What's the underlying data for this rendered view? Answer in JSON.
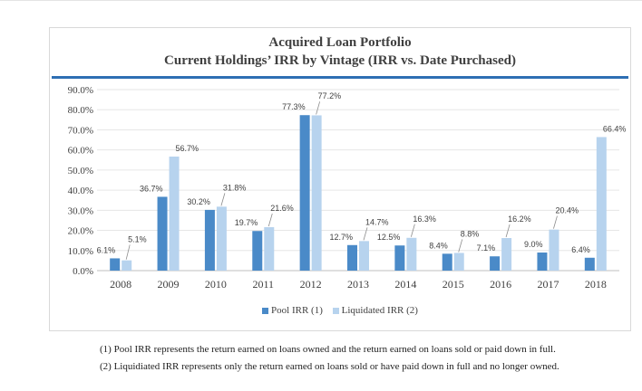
{
  "chart_data": {
    "type": "bar",
    "title_line1": "Acquired Loan Portfolio",
    "title_line2": "Current Holdings’ IRR by Vintage (IRR vs. Date Purchased)",
    "categories": [
      "2008",
      "2009",
      "2010",
      "2011",
      "2012",
      "2013",
      "2014",
      "2015",
      "2016",
      "2017",
      "2018"
    ],
    "series": [
      {
        "name": "Pool IRR (1)",
        "color": "#4a8ac8",
        "values": [
          6.1,
          36.7,
          30.2,
          19.7,
          77.3,
          12.7,
          12.5,
          8.4,
          7.1,
          9.0,
          6.4
        ],
        "labels": [
          "6.1%",
          "36.7%",
          "30.2%",
          "19.7%",
          "77.3%",
          "12.7%",
          "12.5%",
          "8.4%",
          "7.1%",
          "9.0%",
          "6.4%"
        ]
      },
      {
        "name": "Liquidated IRR (2)",
        "color": "#b7d3ee",
        "values": [
          5.1,
          56.7,
          31.8,
          21.6,
          77.2,
          14.7,
          16.3,
          8.8,
          16.2,
          20.4,
          66.4
        ],
        "labels": [
          "5.1%",
          "56.7%",
          "31.8%",
          "21.6%",
          "77.2%",
          "14.7%",
          "16.3%",
          "8.8%",
          "16.2%",
          "20.4%",
          "66.4%"
        ]
      }
    ],
    "yticks": [
      "0.0%",
      "10.0%",
      "20.0%",
      "30.0%",
      "40.0%",
      "50.0%",
      "60.0%",
      "70.0%",
      "80.0%",
      "90.0%"
    ],
    "ylim": [
      0,
      90
    ],
    "grid": true,
    "legend_position": "bottom"
  },
  "footnotes": [
    "(1) Pool IRR represents the return earned on loans owned and the return earned on loans sold or paid down in full.",
    "(2) Liquidiated IRR represents only the return earned on loans sold or have paid down in full and no longer owned."
  ]
}
